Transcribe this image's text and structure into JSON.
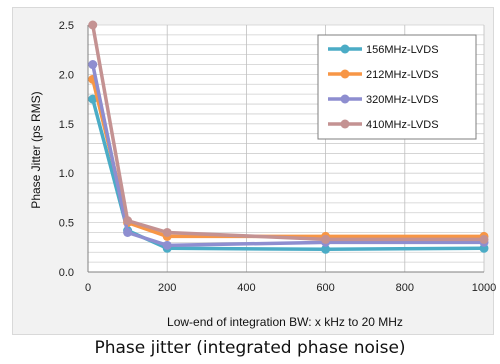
{
  "caption": "Phase jitter (integrated phase noise)",
  "chart_data": {
    "type": "line",
    "xlabel": "Low-end of integration BW: x kHz to 20 MHz",
    "ylabel": "Phase Jitter (ps RMS)",
    "xlim": [
      0,
      1000
    ],
    "ylim": [
      0,
      2.5
    ],
    "x_ticks": [
      "0",
      "200",
      "400",
      "600",
      "800",
      "1000"
    ],
    "y_ticks": [
      "0.0",
      "0.5",
      "1.0",
      "1.5",
      "2.0",
      "2.5"
    ],
    "grid": true,
    "legend_position": "top-right",
    "x": [
      12,
      100,
      200,
      600,
      1000
    ],
    "series": [
      {
        "name": "156MHz-LVDS",
        "color": "#4bacc6",
        "values": [
          1.75,
          0.42,
          0.24,
          0.23,
          0.24
        ]
      },
      {
        "name": "212MHz-LVDS",
        "color": "#f79646",
        "values": [
          1.95,
          0.5,
          0.36,
          0.36,
          0.36
        ]
      },
      {
        "name": "320MHz-LVDS",
        "color": "#8e8ed0",
        "values": [
          2.1,
          0.4,
          0.27,
          0.3,
          0.3
        ]
      },
      {
        "name": "410MHz-LVDS",
        "color": "#c49292",
        "values": [
          2.5,
          0.52,
          0.4,
          0.33,
          0.33
        ]
      }
    ]
  }
}
